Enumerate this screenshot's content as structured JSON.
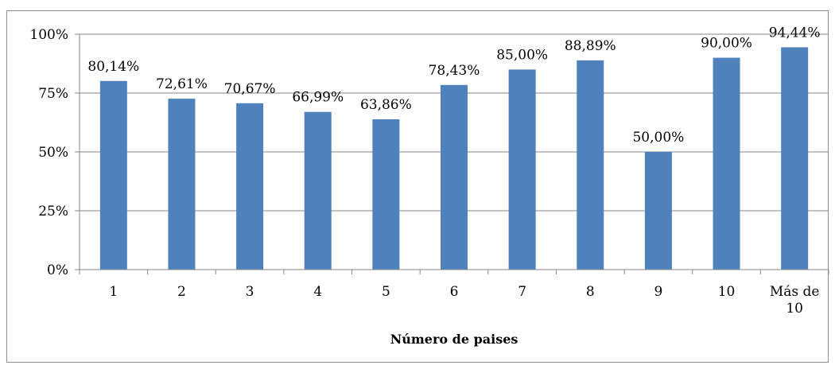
{
  "chart_data": {
    "type": "bar",
    "title": "",
    "xlabel": "Número de paises",
    "ylabel": "",
    "ylim": [
      0,
      100
    ],
    "yticks": [
      "0%",
      "25%",
      "50%",
      "75%",
      "100%"
    ],
    "ytick_values": [
      0,
      25,
      50,
      75,
      100
    ],
    "categories": [
      [
        "1"
      ],
      [
        "2"
      ],
      [
        "3"
      ],
      [
        "4"
      ],
      [
        "5"
      ],
      [
        "6"
      ],
      [
        "7"
      ],
      [
        "8"
      ],
      [
        "9"
      ],
      [
        "10"
      ],
      [
        "Más de",
        "10"
      ]
    ],
    "values": [
      80.14,
      72.61,
      70.67,
      66.99,
      63.86,
      78.43,
      85.0,
      88.89,
      50.0,
      90.0,
      94.44
    ],
    "data_labels": [
      "80,14%",
      "72,61%",
      "70,67%",
      "66,99%",
      "63,86%",
      "78,43%",
      "85,00%",
      "88,89%",
      "50,00%",
      "90,00%",
      "94,44%"
    ],
    "grid": true,
    "legend": "none",
    "bar_color": "#4f81bd",
    "grid_color": "#868686"
  }
}
